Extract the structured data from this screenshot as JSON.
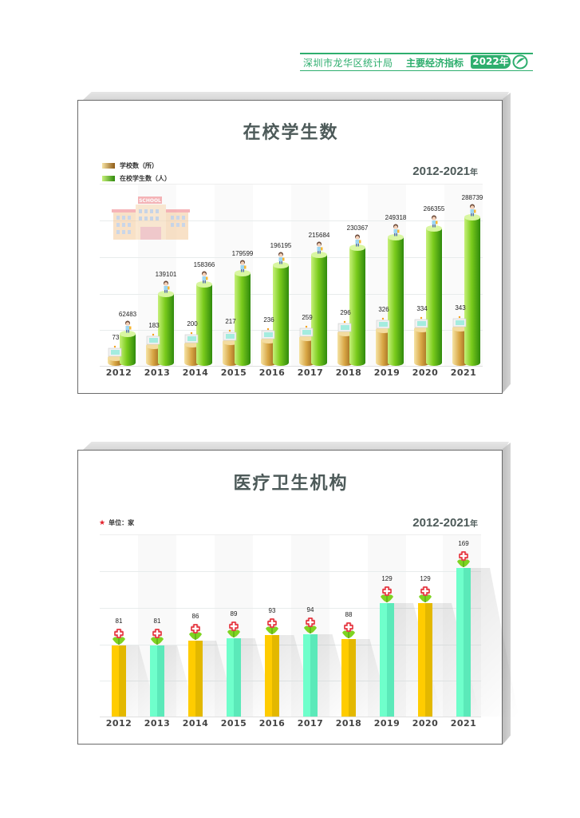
{
  "header": {
    "org": "深圳市龙华区统计局",
    "subtitle": "主要经济指标",
    "year_badge": "2022年",
    "accent_color": "#2eae6e"
  },
  "chart1": {
    "title": "在校学生数",
    "range": "2012-2021",
    "range_suffix": "年",
    "legend": [
      {
        "label": "学校数（所）",
        "color": "#b07a2a"
      },
      {
        "label": "在校学生数（人）",
        "color": "#5cb814"
      }
    ],
    "years": [
      "2012",
      "2013",
      "2014",
      "2015",
      "2016",
      "2017",
      "2018",
      "2019",
      "2020",
      "2021"
    ],
    "schools": [
      "73",
      "183",
      "200",
      "217",
      "236",
      "259",
      "296",
      "326",
      "334",
      "343"
    ],
    "students": [
      "62483",
      "139101",
      "158366",
      "179599",
      "196195",
      "215684",
      "230367",
      "249318",
      "266355",
      "288739"
    ]
  },
  "chart2": {
    "title": "医疗卫生机构",
    "unit": "单位：家",
    "range": "2012-2021",
    "range_suffix": "年",
    "years": [
      "2012",
      "2013",
      "2014",
      "2015",
      "2016",
      "2017",
      "2018",
      "2019",
      "2020",
      "2021"
    ],
    "values": [
      "81",
      "81",
      "86",
      "89",
      "93",
      "94",
      "88",
      "129",
      "129",
      "169"
    ]
  },
  "chart_data": [
    {
      "type": "bar",
      "title": "在校学生数",
      "subtitle": "2012-2021年",
      "categories": [
        "2012",
        "2013",
        "2014",
        "2015",
        "2016",
        "2017",
        "2018",
        "2019",
        "2020",
        "2021"
      ],
      "series": [
        {
          "name": "学校数（所）",
          "values": [
            73,
            183,
            200,
            217,
            236,
            259,
            296,
            326,
            334,
            343
          ]
        },
        {
          "name": "在校学生数（人）",
          "values": [
            62483,
            139101,
            158366,
            179599,
            196195,
            215684,
            230367,
            249318,
            266355,
            288739
          ]
        }
      ],
      "xlabel": "",
      "ylabel": "",
      "legend_position": "top-left",
      "grid": true
    },
    {
      "type": "bar",
      "title": "医疗卫生机构",
      "subtitle": "2012-2021年",
      "unit": "单位：家",
      "categories": [
        "2012",
        "2013",
        "2014",
        "2015",
        "2016",
        "2017",
        "2018",
        "2019",
        "2020",
        "2021"
      ],
      "values": [
        81,
        81,
        86,
        89,
        93,
        94,
        88,
        129,
        129,
        169
      ],
      "xlabel": "",
      "ylabel": "",
      "grid": true
    }
  ]
}
